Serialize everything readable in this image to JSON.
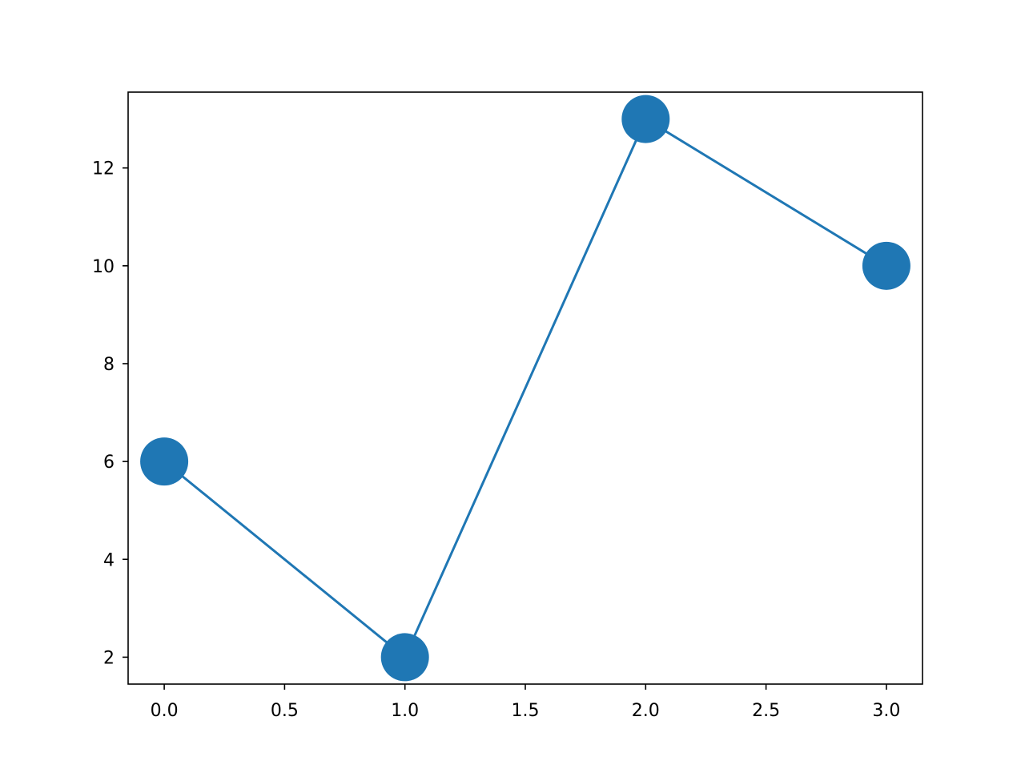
{
  "chart_data": {
    "type": "line",
    "title": "",
    "xlabel": "",
    "ylabel": "",
    "x": [
      0,
      1,
      2,
      3
    ],
    "series": [
      {
        "values": [
          6,
          2,
          13,
          10
        ],
        "color": "#1f77b4",
        "marker": "circle"
      }
    ],
    "xlim": [
      -0.15,
      3.15
    ],
    "ylim": [
      1.45,
      13.55
    ],
    "xticks": [
      0.0,
      0.5,
      1.0,
      1.5,
      2.0,
      2.5,
      3.0
    ],
    "xtick_labels": [
      "0.0",
      "0.5",
      "1.0",
      "1.5",
      "2.0",
      "2.5",
      "3.0"
    ],
    "yticks": [
      2,
      4,
      6,
      8,
      10,
      12
    ],
    "ytick_labels": [
      "2",
      "4",
      "6",
      "8",
      "10",
      "12"
    ],
    "grid": false,
    "legend": "none"
  }
}
